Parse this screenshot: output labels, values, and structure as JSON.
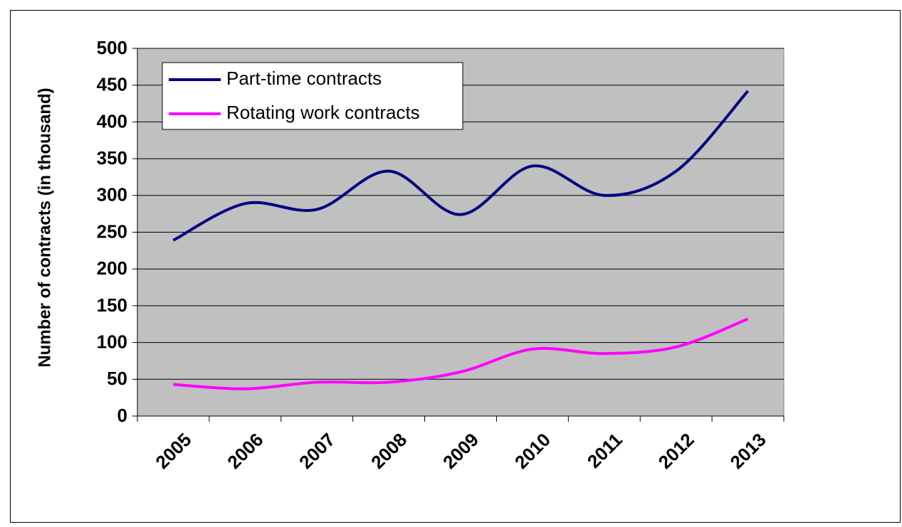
{
  "chart_data": {
    "type": "line",
    "y_label": "Number of contracts (in thousand)",
    "categories": [
      "2005",
      "2006",
      "2007",
      "2008",
      "2009",
      "2010",
      "2011",
      "2012",
      "2013"
    ],
    "series": [
      {
        "name": "Part-time contracts",
        "color": "#000080",
        "values": [
          239,
          289,
          281,
          333,
          274,
          340,
          300,
          333,
          442
        ]
      },
      {
        "name": "Rotating work contracts",
        "color": "#ff00ff",
        "values": [
          43,
          37,
          46,
          46,
          60,
          91,
          85,
          94,
          132
        ]
      }
    ],
    "ylim": [
      0,
      500
    ],
    "yticks": [
      0,
      50,
      100,
      150,
      200,
      250,
      300,
      350,
      400,
      450,
      500
    ],
    "grid": true,
    "smooth": true,
    "legend": "top-left",
    "plot_background": "#c0c0c0"
  }
}
